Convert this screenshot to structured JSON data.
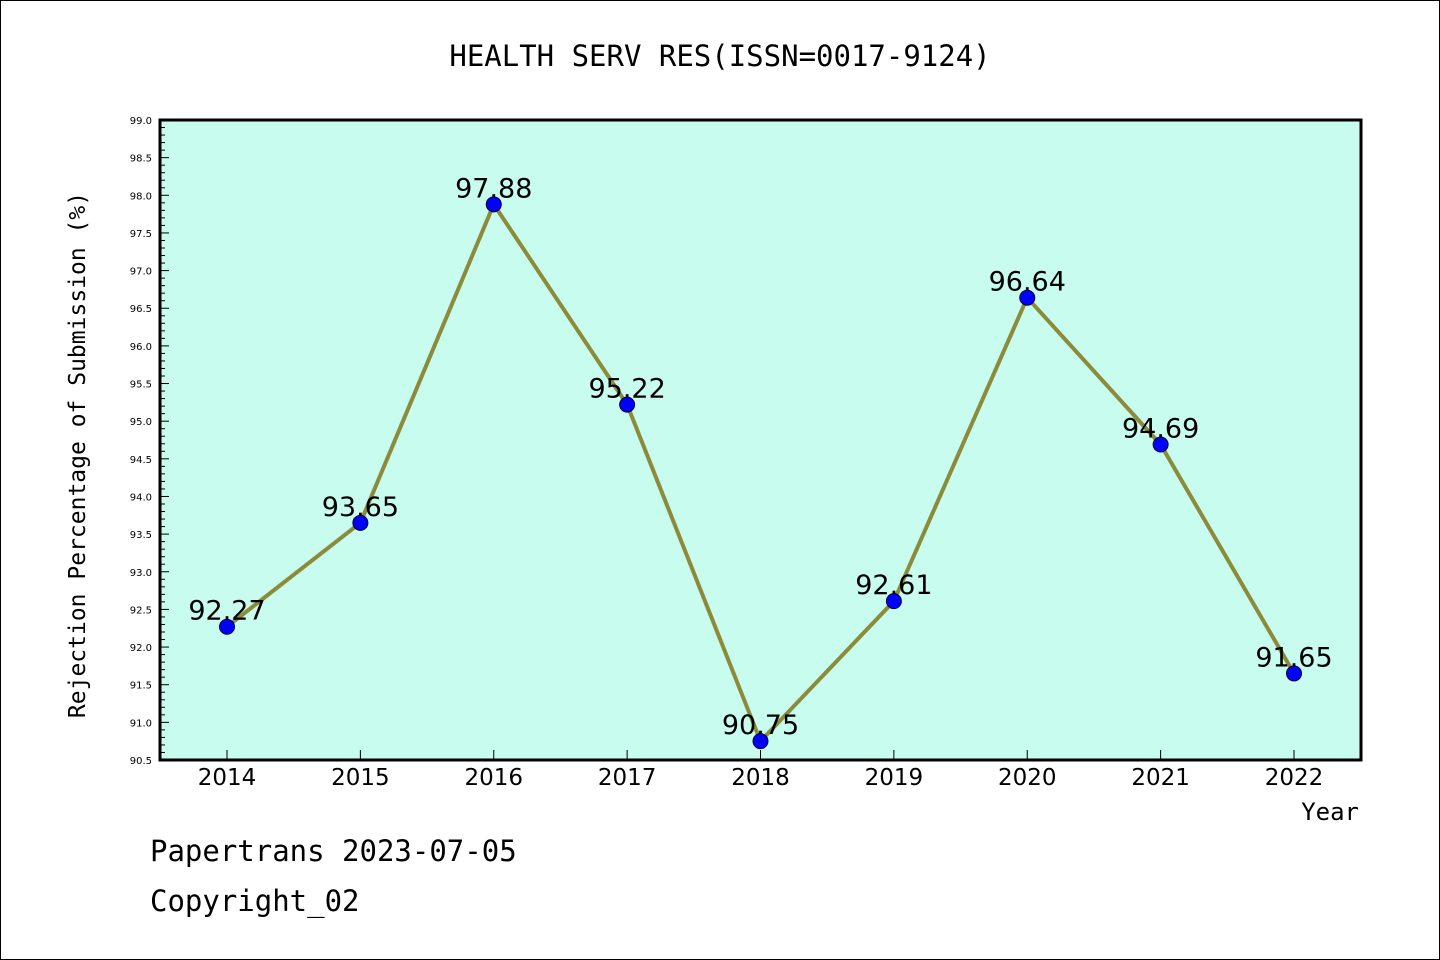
{
  "footer": {
    "line1": "Papertrans 2023-07-05",
    "line2": "Copyright_02"
  },
  "chart_data": {
    "type": "line",
    "title": "HEALTH SERV RES(ISSN=0017-9124)",
    "xlabel": "Year",
    "ylabel": "Rejection Percentage of Submission (%)",
    "categories": [
      "2014",
      "2015",
      "2016",
      "2017",
      "2018",
      "2019",
      "2020",
      "2021",
      "2022"
    ],
    "values": [
      92.27,
      93.65,
      97.88,
      95.22,
      90.75,
      92.61,
      96.64,
      94.69,
      91.65
    ],
    "data_labels": [
      "92.27",
      "93.65",
      "97.88",
      "95.22",
      "90.75",
      "92.61",
      "96.64",
      "94.69",
      "91.65"
    ],
    "ylim": [
      90.5,
      99.0
    ],
    "yticks": [
      "90.5",
      "91.0",
      "91.5",
      "92.0",
      "92.5",
      "93.0",
      "93.5",
      "94.0",
      "94.5",
      "95.0",
      "95.5",
      "96.0",
      "96.5",
      "97.0",
      "97.5",
      "98.0",
      "98.5",
      "99.0"
    ],
    "grid": false,
    "colors": {
      "plot_background": "#c8fcee",
      "line": "#8b8b3a",
      "marker": "#0000ff"
    }
  }
}
